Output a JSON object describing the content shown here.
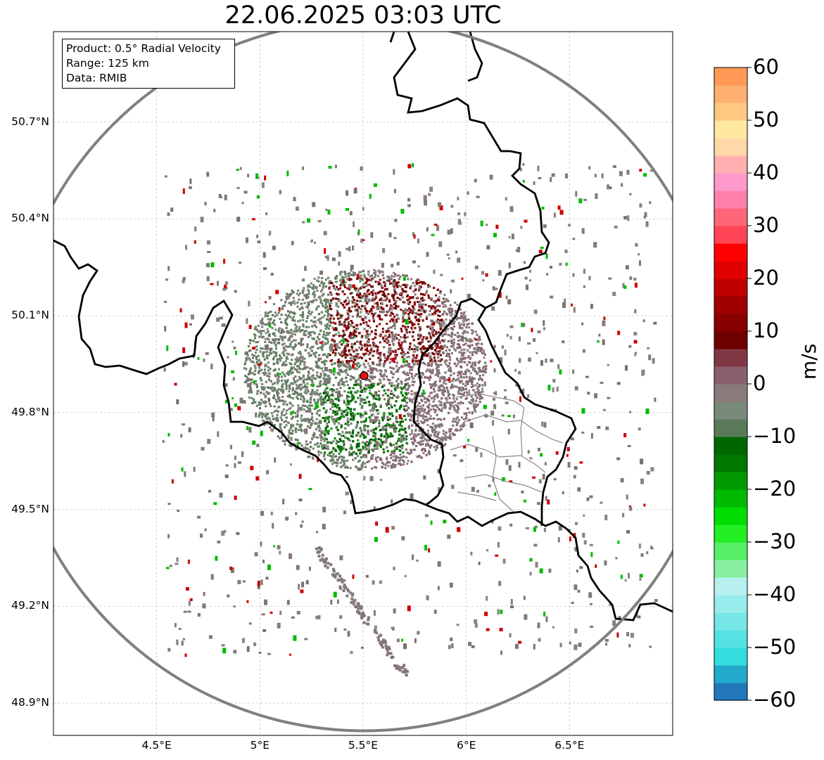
{
  "title": "22.06.2025 03:03 UTC",
  "info": {
    "product": "Product: 0.5° Radial Velocity",
    "range": "Range: 125 km",
    "source": "Data: RMIB"
  },
  "map": {
    "lon_range": [
      4.0,
      7.0
    ],
    "lat_range": [
      48.8,
      50.98
    ],
    "lat_ticks": [
      {
        "value": 50.7,
        "label": "50.7°N"
      },
      {
        "value": 50.4,
        "label": "50.4°N"
      },
      {
        "value": 50.1,
        "label": "50.1°N"
      },
      {
        "value": 49.8,
        "label": "49.8°N"
      },
      {
        "value": 49.5,
        "label": "49.5°N"
      },
      {
        "value": 49.2,
        "label": "49.2°N"
      },
      {
        "value": 48.9,
        "label": "48.9°N"
      }
    ],
    "lon_ticks": [
      {
        "value": 4.5,
        "label": "4.5°E"
      },
      {
        "value": 5.0,
        "label": "5°E"
      },
      {
        "value": 5.5,
        "label": "5.5°E"
      },
      {
        "value": 6.0,
        "label": "6°E"
      },
      {
        "value": 6.5,
        "label": "6.5°E"
      }
    ],
    "radar_site": {
      "lon": 5.505,
      "lat": 49.914
    },
    "range_km": 125
  },
  "colorbar": {
    "unit": "m/s",
    "min": -60,
    "max": 60,
    "ticks": [
      {
        "value": 60,
        "label": "60"
      },
      {
        "value": 50,
        "label": "50"
      },
      {
        "value": 40,
        "label": "40"
      },
      {
        "value": 30,
        "label": "30"
      },
      {
        "value": 20,
        "label": "20"
      },
      {
        "value": 10,
        "label": "10"
      },
      {
        "value": 0,
        "label": "0"
      },
      {
        "value": -10,
        "label": "−10"
      },
      {
        "value": -20,
        "label": "−20"
      },
      {
        "value": -30,
        "label": "−30"
      },
      {
        "value": -40,
        "label": "−40"
      },
      {
        "value": -50,
        "label": "−50"
      },
      {
        "value": -60,
        "label": "−60"
      }
    ],
    "colors": [
      "#2277bb",
      "#22aacc",
      "#33dddd",
      "#55e2e2",
      "#77e6e6",
      "#99ecec",
      "#b8f0f0",
      "#88f0a0",
      "#55f066",
      "#22ee22",
      "#00dd00",
      "#00bb00",
      "#009900",
      "#007700",
      "#006600",
      "#5a7a5a",
      "#7a8a7a",
      "#8a7a7a",
      "#8a6070",
      "#803844",
      "#700000",
      "#880000",
      "#a00000",
      "#c00000",
      "#e00000",
      "#ff0000",
      "#ff4455",
      "#ff6677",
      "#ff80aa",
      "#ff99cc",
      "#ffb0b0",
      "#ffd8a8",
      "#ffe8a0",
      "#ffc880",
      "#ffb070",
      "#ff9955"
    ]
  }
}
